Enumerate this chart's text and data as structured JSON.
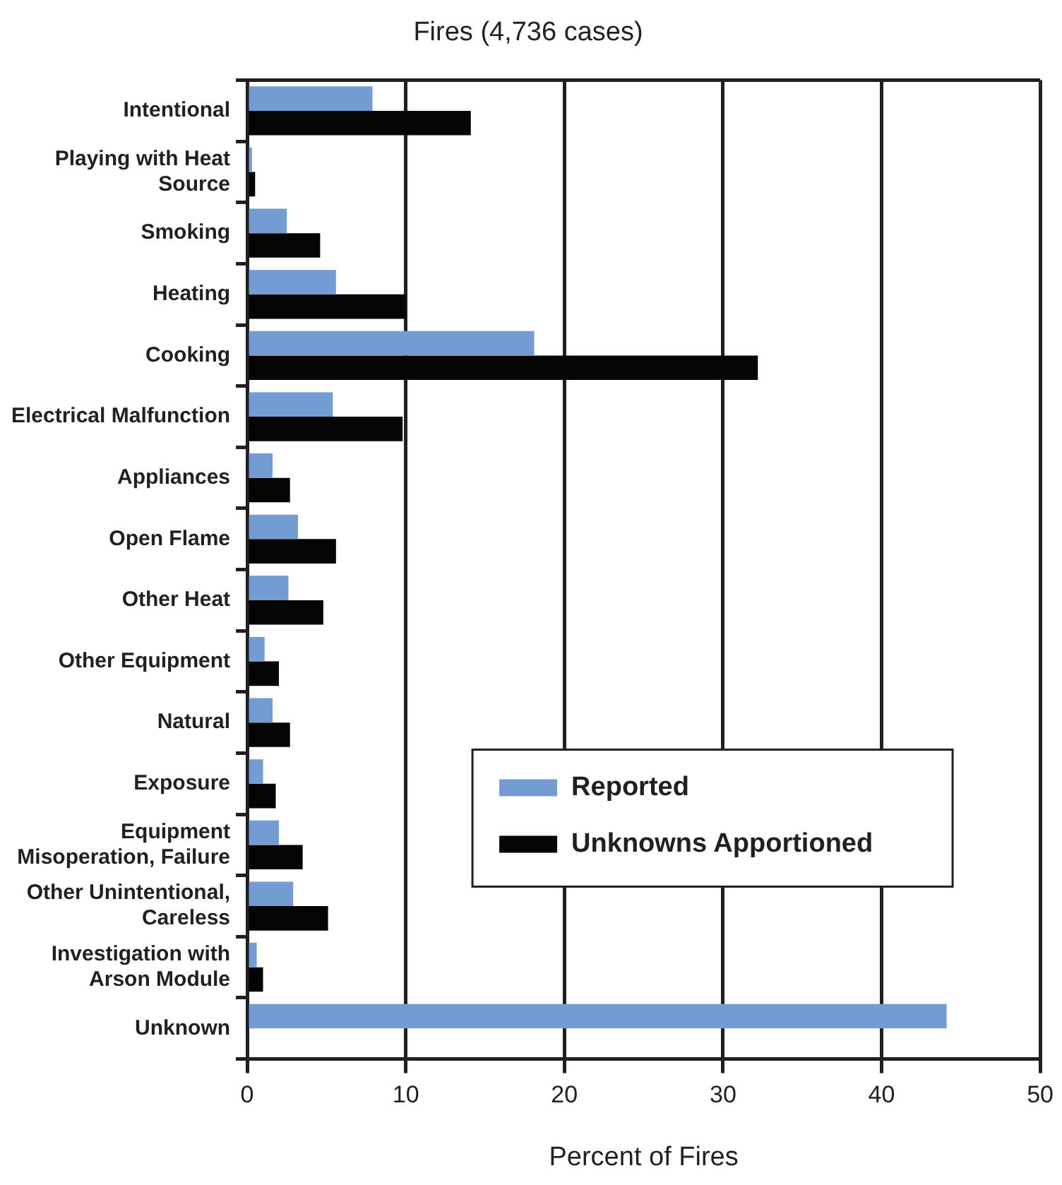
{
  "chart_data": {
    "type": "bar",
    "orientation": "horizontal",
    "title": "Fires (4,736 cases)",
    "xlabel": "Percent of Fires",
    "categories": [
      "Intentional",
      "Playing with Heat Source",
      "Smoking",
      "Heating",
      "Cooking",
      "Electrical Malfunction",
      "Appliances",
      "Open Flame",
      "Other Heat",
      "Other Equipment",
      "Natural",
      "Exposure",
      "Equipment Misoperation, Failure",
      "Other Unintentional, Careless",
      "Investigation with Arson Module",
      "Unknown"
    ],
    "series": [
      {
        "name": "Reported",
        "color": "#739cd2",
        "values": [
          7.9,
          0.3,
          2.5,
          5.6,
          18.1,
          5.4,
          1.6,
          3.2,
          2.6,
          1.1,
          1.6,
          1.0,
          2.0,
          2.9,
          0.6,
          44.1
        ]
      },
      {
        "name": "Unknowns Apportioned",
        "color": "#050603",
        "values": [
          14.1,
          0.5,
          4.6,
          10.0,
          32.2,
          9.8,
          2.7,
          5.6,
          4.8,
          2.0,
          2.7,
          1.8,
          3.5,
          5.1,
          1.0,
          null
        ]
      }
    ],
    "xlim": [
      0,
      50
    ],
    "xticks": [
      0,
      10,
      20,
      30,
      40,
      50
    ],
    "grid": "x",
    "legend": "bottom right"
  }
}
